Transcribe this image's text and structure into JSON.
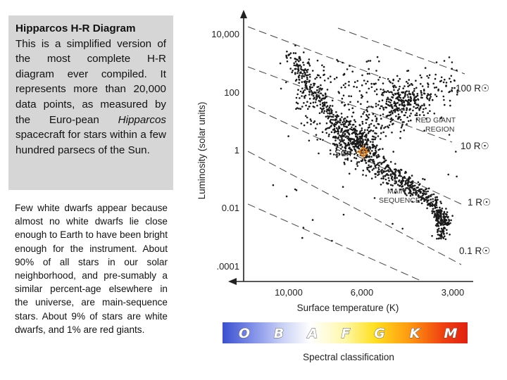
{
  "intro": {
    "heading": "Hipparcos H-R Diagram",
    "text_1": "This is a simplified version of the most complete H-R diagram ever compiled. It represents more than 20,000 data points, as measured by the Euro-pean ",
    "text_em": "Hipparcos",
    "text_2": " spacecraft for stars within a few hundred parsecs of the Sun."
  },
  "notes": "Few white dwarfs appear because almost no white dwarfs lie close enough to Earth to have been bright enough for the instrument. About 90% of all stars in our solar neighborhood, and pre-sumably a similar percent-age elsewhere in the universe, are main-sequence stars. About 9% of stars are white dwarfs, and 1% are red giants.",
  "chart_data": {
    "type": "scatter",
    "xlabel": "Surface temperature (K)",
    "ylabel": "Luminosity (solar units)",
    "x_scale": "reversed",
    "y_scale": "log",
    "x_ticks": [
      "10,000",
      "6,000",
      "3,000"
    ],
    "y_ticks": [
      "10,000",
      "100",
      "1",
      "0.01",
      ".0001"
    ],
    "radius_lines": [
      "0.1 R☉",
      "1 R☉",
      "10 R☉",
      "100 R☉"
    ],
    "annotations": [
      "RED GIANT REGION",
      "MAIN SEQUENCE",
      "Sun"
    ],
    "spectral_label": "Spectral classification",
    "spectral_classes": [
      "O",
      "B",
      "A",
      "F",
      "G",
      "K",
      "M"
    ],
    "point_count_note": "dense cloud of several hundred plotted stars along main sequence and red giant clump"
  },
  "colors": {
    "sun_marker": "#e07a10",
    "axis": "#222222",
    "dot": "#1a1a1a"
  }
}
